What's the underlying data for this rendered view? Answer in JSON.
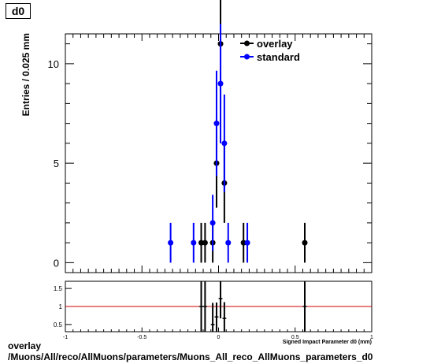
{
  "chart_data": {
    "type": "scatter",
    "title": "d0",
    "ylabel": "Entries / 0.025 mm",
    "xlabel": "Signed Impact Parameter d0 (mm)",
    "xlim": [
      -1,
      1
    ],
    "ylim": [
      -0.5,
      11.5
    ],
    "y_ticks": [
      0,
      5,
      10
    ],
    "x_ticks": [
      -1,
      -0.5,
      0,
      0.5,
      1
    ],
    "x_tick_labels": [
      "-1",
      "-0.5",
      "0",
      "0.5",
      "1"
    ],
    "legend_position": "top-right",
    "series": [
      {
        "name": "overlay",
        "color": "#000000",
        "x": [
          -0.113,
          -0.088,
          -0.038,
          -0.013,
          0.013,
          0.038,
          0.163,
          0.563
        ],
        "y": [
          1,
          1,
          1,
          5,
          11,
          4,
          1,
          1
        ],
        "yerr": [
          1,
          1,
          1,
          2.24,
          3.32,
          2,
          1,
          1
        ]
      },
      {
        "name": "standard",
        "color": "#0000ff",
        "x": [
          -0.313,
          -0.163,
          -0.038,
          -0.013,
          0.013,
          0.038,
          0.063,
          0.188
        ],
        "y": [
          1,
          1,
          2,
          7,
          9,
          6,
          1,
          1
        ],
        "yerr": [
          1,
          1,
          1.41,
          2.65,
          3,
          2.45,
          1,
          1
        ]
      }
    ],
    "ratio": {
      "ylim": [
        0.3,
        1.7
      ],
      "y_ticks": [
        0.5,
        1,
        1.5
      ],
      "y_tick_labels": [
        "0.5",
        "1",
        "1.5"
      ],
      "reference_line": 1,
      "reference_color": "#cc0000",
      "points": [
        {
          "x": -0.113,
          "y": 1,
          "yerr": 1.4
        },
        {
          "x": -0.088,
          "y": 1,
          "yerr": 1.4
        },
        {
          "x": -0.038,
          "y": 0.5,
          "yerr": 0.6
        },
        {
          "x": -0.013,
          "y": 0.71,
          "yerr": 0.4
        },
        {
          "x": 0.013,
          "y": 1.22,
          "yerr": 0.55
        },
        {
          "x": 0.038,
          "y": 0.67,
          "yerr": 0.45
        },
        {
          "x": 0.563,
          "y": 1,
          "yerr": 1.4
        }
      ]
    }
  },
  "footer": {
    "line1": "overlay",
    "line2": "/Muons/All/reco/AllMuons/parameters/Muons_All_reco_AllMuons_parameters_d0"
  }
}
